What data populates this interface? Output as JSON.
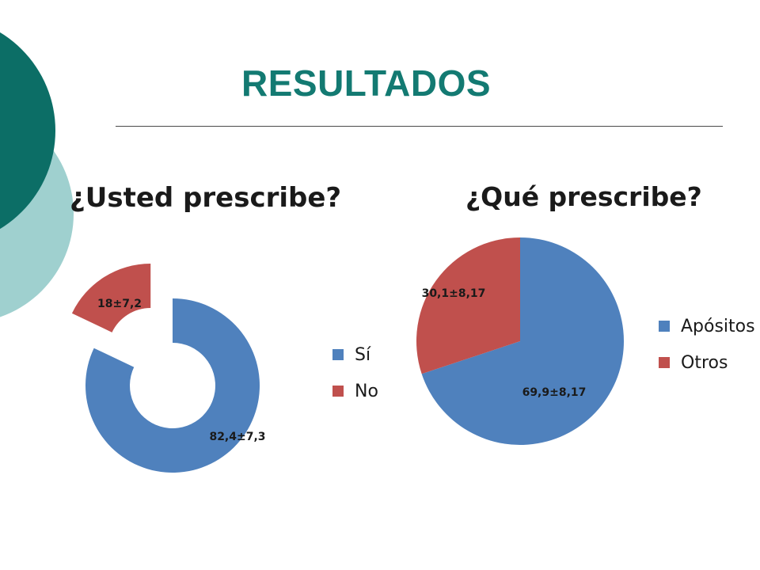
{
  "slide": {
    "title": "RESULTADOS"
  },
  "theme": {
    "title_color": "#137a72",
    "dark_teal": "#0c6e66",
    "light_teal": "#9fd0cf",
    "blue": "#4f81bd",
    "red": "#c0504d"
  },
  "chart_data": [
    {
      "type": "pie",
      "style": "doughnut",
      "title": "¿Usted prescribe?",
      "categories": [
        "Sí",
        "No"
      ],
      "values": [
        82.4,
        18
      ],
      "data_labels": [
        "82,4±7,3",
        "18±7,2"
      ],
      "colors": [
        "#4f81bd",
        "#c0504d"
      ],
      "exploded": [
        false,
        true
      ],
      "legend_placement": "right"
    },
    {
      "type": "pie",
      "title": "¿Qué prescribe?",
      "categories": [
        "Apósitos",
        "Otros"
      ],
      "values": [
        69.9,
        30.1
      ],
      "data_labels": [
        "69,9±8,17",
        "30,1±8,17"
      ],
      "colors": [
        "#4f81bd",
        "#c0504d"
      ],
      "legend_placement": "right"
    }
  ]
}
